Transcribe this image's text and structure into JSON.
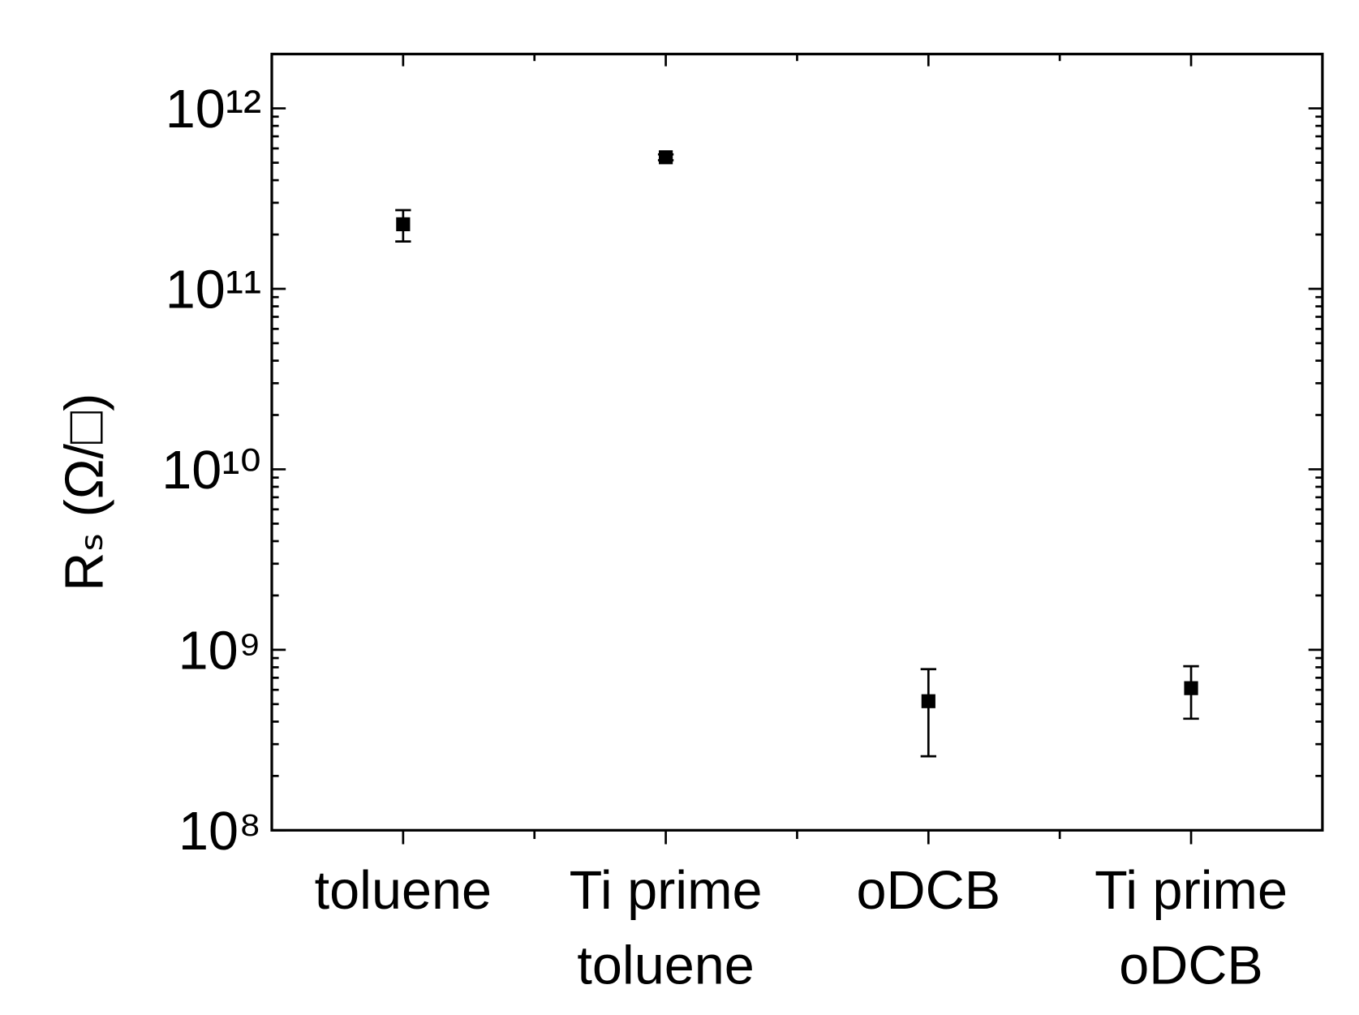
{
  "chart_data": {
    "type": "scatter",
    "y_label": "Rₛ (Ω/□)",
    "categories": [
      "toluene",
      "Ti prime\ntoluene",
      "oDCB",
      "Ti prime\noDCB"
    ],
    "series": [
      {
        "color": "#000000",
        "values": [
          228000000000,
          536000000000,
          519000000,
          613000000
        ],
        "errors": [
          45000000000,
          20000000000,
          262000000,
          198000000
        ]
      }
    ],
    "log_y": true,
    "ylim": [
      100000000,
      2000000000000
    ],
    "yticks": [
      {
        "value": 100000000,
        "label": "10⁸"
      },
      {
        "value": 1000000000,
        "label": "10⁹"
      },
      {
        "value": 10000000000,
        "label": "10¹⁰"
      },
      {
        "value": 100000000000,
        "label": "10¹¹"
      },
      {
        "value": 1000000000000,
        "label": "10¹²"
      }
    ],
    "grid": false
  }
}
